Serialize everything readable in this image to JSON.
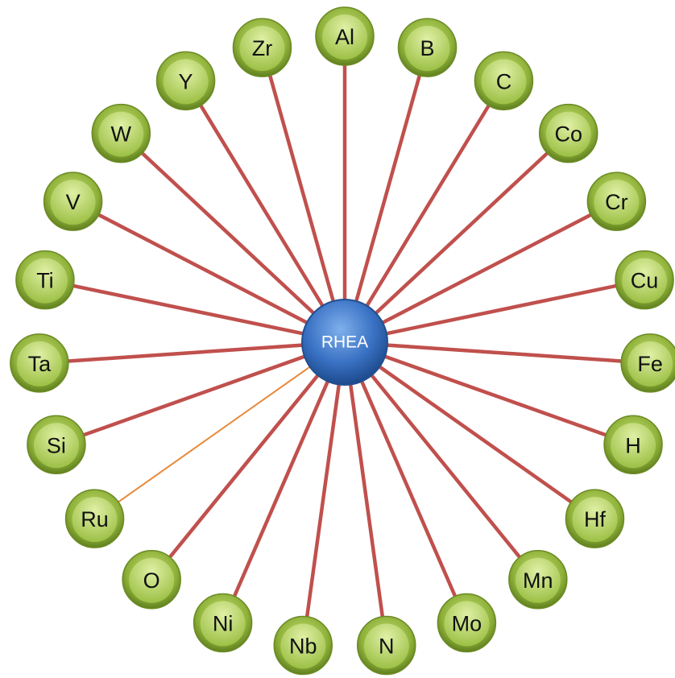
{
  "center": {
    "label": "RHEA"
  },
  "nodes": [
    {
      "label": "Al"
    },
    {
      "label": "B"
    },
    {
      "label": "C"
    },
    {
      "label": "Co"
    },
    {
      "label": "Cr"
    },
    {
      "label": "Cu"
    },
    {
      "label": "Fe"
    },
    {
      "label": "H"
    },
    {
      "label": "Hf"
    },
    {
      "label": "Mn"
    },
    {
      "label": "Mo"
    },
    {
      "label": "N"
    },
    {
      "label": "Nb"
    },
    {
      "label": "Ni"
    },
    {
      "label": "O"
    },
    {
      "label": "Ru"
    },
    {
      "label": "Si"
    },
    {
      "label": "Ta"
    },
    {
      "label": "Ti"
    },
    {
      "label": "V"
    },
    {
      "label": "W"
    },
    {
      "label": "Y"
    },
    {
      "label": "Zr"
    }
  ]
}
